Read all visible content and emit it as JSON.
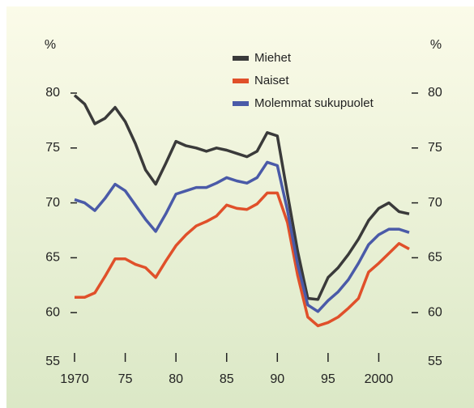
{
  "chart_data": {
    "type": "line",
    "unit_left": "%",
    "unit_right": "%",
    "x": [
      1970,
      1971,
      1972,
      1973,
      1974,
      1975,
      1976,
      1977,
      1978,
      1979,
      1980,
      1981,
      1982,
      1983,
      1984,
      1985,
      1986,
      1987,
      1988,
      1989,
      1990,
      1991,
      1992,
      1993,
      1994,
      1995,
      1996,
      1997,
      1998,
      1999,
      2000,
      2001,
      2002,
      2003
    ],
    "series": [
      {
        "name": "Miehet",
        "color": "#3a3a3a",
        "values": [
          79.8,
          79.0,
          77.2,
          77.7,
          78.7,
          77.4,
          75.4,
          73.0,
          71.7,
          73.6,
          75.6,
          75.2,
          75.0,
          74.7,
          75.0,
          74.8,
          74.5,
          74.2,
          74.7,
          76.4,
          76.1,
          70.8,
          65.6,
          61.3,
          61.2,
          63.2,
          64.1,
          65.3,
          66.7,
          68.4,
          69.5,
          70.0,
          69.2,
          69.0
        ]
      },
      {
        "name": "Naiset",
        "color": "#e0502a",
        "values": [
          61.4,
          61.4,
          61.8,
          63.3,
          64.9,
          64.9,
          64.4,
          64.1,
          63.2,
          64.7,
          66.1,
          67.1,
          67.9,
          68.3,
          68.8,
          69.8,
          69.5,
          69.4,
          69.9,
          70.9,
          70.9,
          68.2,
          63.4,
          59.6,
          58.8,
          59.1,
          59.6,
          60.4,
          61.3,
          63.7,
          64.5,
          65.4,
          66.3,
          65.8
        ]
      },
      {
        "name": "Molemmat sukupuolet",
        "color": "#4a5aa8",
        "values": [
          70.3,
          70.0,
          69.3,
          70.4,
          71.7,
          71.1,
          69.8,
          68.5,
          67.4,
          69.0,
          70.8,
          71.1,
          71.4,
          71.4,
          71.8,
          72.3,
          72.0,
          71.8,
          72.3,
          73.7,
          73.4,
          69.3,
          64.4,
          60.7,
          60.1,
          61.1,
          61.9,
          63.0,
          64.5,
          66.2,
          67.1,
          67.6,
          67.6,
          67.3
        ]
      }
    ],
    "xlim": [
      1970,
      2003
    ],
    "xticks": [
      1970,
      {
        "value": 1975,
        "label": "75"
      },
      {
        "value": 1980,
        "label": "80"
      },
      {
        "value": 1985,
        "label": "85"
      },
      {
        "value": 1990,
        "label": "90"
      },
      {
        "value": 1995,
        "label": "95"
      },
      {
        "value": 2000,
        "label": "2000"
      }
    ],
    "ylim": [
      55,
      80
    ],
    "yticks": [
      55,
      60,
      65,
      70,
      75,
      80
    ],
    "legend": "top"
  }
}
